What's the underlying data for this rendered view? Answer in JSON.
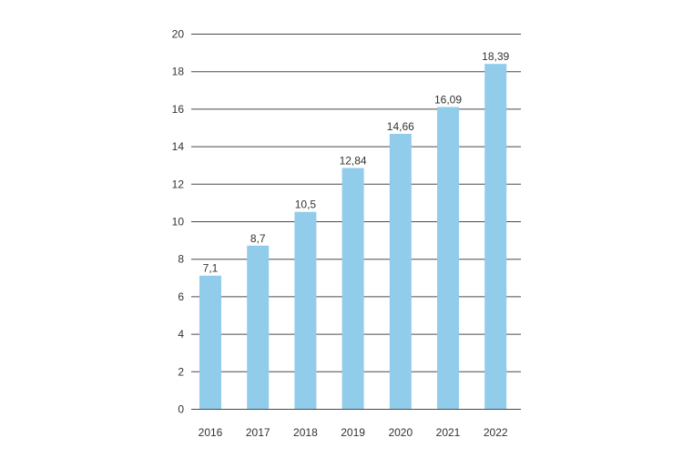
{
  "chart_data": {
    "type": "bar",
    "categories": [
      "2016",
      "2017",
      "2018",
      "2019",
      "2020",
      "2021",
      "2022"
    ],
    "values": [
      7.1,
      8.7,
      10.5,
      12.84,
      14.66,
      16.09,
      18.39
    ],
    "data_labels": [
      "7,1",
      "8,7",
      "10,5",
      "12,84",
      "14,66",
      "16,09",
      "18,39"
    ],
    "ylim": [
      0,
      20
    ],
    "yticks": [
      0,
      2,
      4,
      6,
      8,
      10,
      12,
      14,
      16,
      18,
      20
    ],
    "grid": true,
    "legend": "none",
    "colors": {
      "bar": "#92cceb",
      "grid": "#4a4a4a",
      "text": "#333333"
    }
  }
}
